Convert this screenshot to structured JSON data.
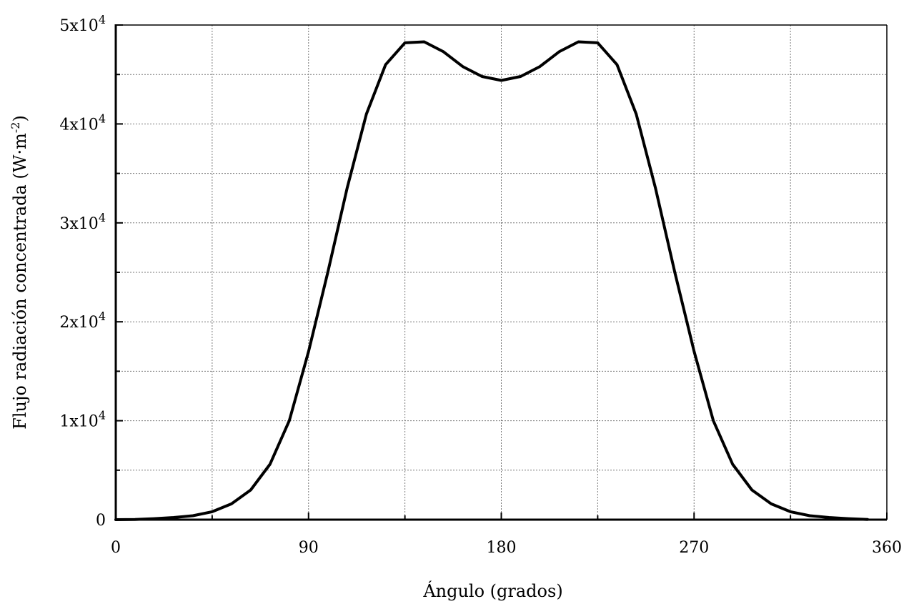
{
  "chart_data": {
    "type": "line",
    "xlabel": "Ángulo (grados)",
    "ylabel": "Flujo radiación concentrada (W·m",
    "ylabel_sup": "-2",
    "ylabel_suffix": ")",
    "xlim": [
      0,
      360
    ],
    "ylim": [
      0,
      50000
    ],
    "grid": true,
    "x_ticks": [
      {
        "value": 0,
        "label": "0"
      },
      {
        "value": 90,
        "label": "90"
      },
      {
        "value": 180,
        "label": "180"
      },
      {
        "value": 270,
        "label": "270"
      },
      {
        "value": 360,
        "label": "360"
      }
    ],
    "y_ticks": [
      {
        "value": 0,
        "label": "0",
        "sup": ""
      },
      {
        "value": 10000,
        "label": "1x10",
        "sup": "4"
      },
      {
        "value": 20000,
        "label": "2x10",
        "sup": "4"
      },
      {
        "value": 30000,
        "label": "3x10",
        "sup": "4"
      },
      {
        "value": 40000,
        "label": "4x10",
        "sup": "4"
      },
      {
        "value": 50000,
        "label": "5x10",
        "sup": "4"
      }
    ],
    "series": [
      {
        "color": "#000000",
        "x": [
          0,
          9,
          18,
          27,
          36,
          45,
          54,
          63,
          72,
          81,
          90,
          99,
          108,
          117,
          126,
          135,
          144,
          153,
          162,
          171,
          180,
          189,
          198,
          207,
          216,
          225,
          234,
          243,
          252,
          261,
          270,
          279,
          288,
          297,
          306,
          315,
          324,
          333,
          342,
          351
        ],
        "y": [
          0,
          20,
          100,
          220,
          400,
          800,
          1600,
          3000,
          5600,
          10000,
          17000,
          25000,
          33500,
          41000,
          46000,
          48200,
          48300,
          47300,
          45800,
          44800,
          44400,
          44800,
          45800,
          47300,
          48300,
          48200,
          46000,
          41000,
          33500,
          25000,
          17000,
          10000,
          5600,
          3000,
          1600,
          800,
          400,
          220,
          100,
          20
        ]
      }
    ]
  }
}
